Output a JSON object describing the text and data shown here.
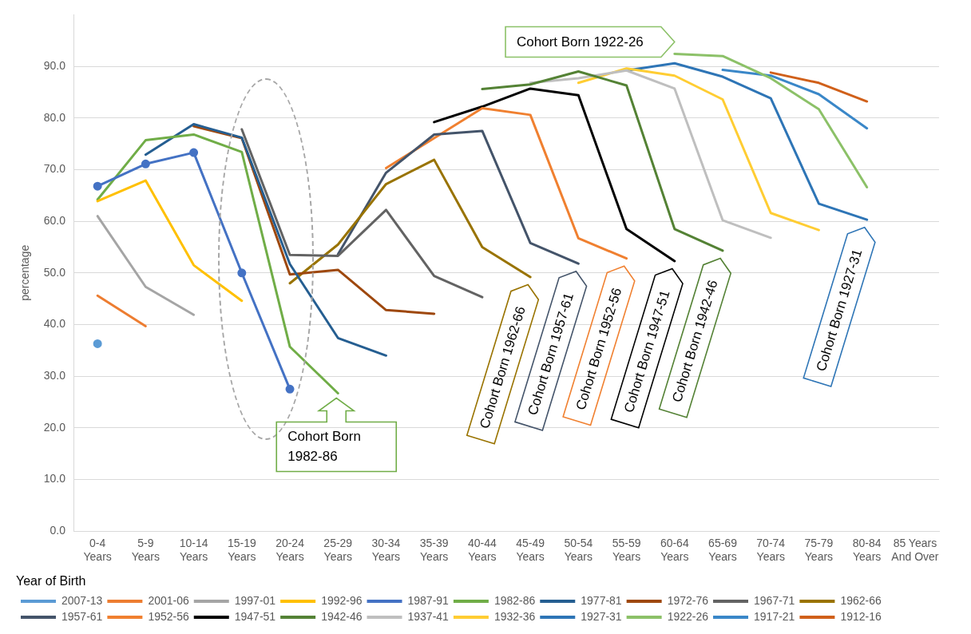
{
  "chart_data": {
    "type": "line",
    "categories": [
      "0-4 Years",
      "5-9 Years",
      "10-14 Years",
      "15-19 Years",
      "20-24 Years",
      "25-29 Years",
      "30-34 Years",
      "35-39 Years",
      "40-44 Years",
      "45-49 Years",
      "50-54 Years",
      "55-59 Years",
      "60-64 Years",
      "65-69 Years",
      "70-74 Years",
      "75-79 Years",
      "80-84 Years",
      "85 Years And Over"
    ],
    "ylabel": "percentage",
    "legend_title": "Year of Birth",
    "legend": "bottom",
    "grid": "y",
    "marker": "none",
    "line_style": "solid",
    "ylim": [
      0,
      100
    ],
    "yticks": [
      {
        "value": 0,
        "label": "0.0"
      },
      {
        "value": 10,
        "label": "10.0"
      },
      {
        "value": 20,
        "label": "20.0"
      },
      {
        "value": 30,
        "label": "30.0"
      },
      {
        "value": 40,
        "label": "40.0"
      },
      {
        "value": 50,
        "label": "50.0"
      },
      {
        "value": 60,
        "label": "60.0"
      },
      {
        "value": 70,
        "label": "70.0"
      },
      {
        "value": 80,
        "label": "80.0"
      },
      {
        "value": 90,
        "label": "90.0"
      }
    ],
    "series": [
      {
        "name": "2007-13",
        "color": "#5b9bd5",
        "marker": "circle",
        "values": [
          36.3,
          null,
          null,
          null,
          null,
          null,
          null,
          null,
          null,
          null,
          null,
          null,
          null,
          null,
          null,
          null,
          null,
          null
        ]
      },
      {
        "name": "2001-06",
        "color": "#ed7d31",
        "values": [
          45.6,
          39.7,
          null,
          null,
          null,
          null,
          null,
          null,
          null,
          null,
          null,
          null,
          null,
          null,
          null,
          null,
          null,
          null
        ]
      },
      {
        "name": "1997-01",
        "color": "#a5a5a5",
        "values": [
          61.0,
          47.3,
          41.9,
          null,
          null,
          null,
          null,
          null,
          null,
          null,
          null,
          null,
          null,
          null,
          null,
          null,
          null,
          null
        ]
      },
      {
        "name": "1992-96",
        "color": "#ffc000",
        "values": [
          63.9,
          67.9,
          51.5,
          44.6,
          null,
          null,
          null,
          null,
          null,
          null,
          null,
          null,
          null,
          null,
          null,
          null,
          null,
          null
        ]
      },
      {
        "name": "1987-91",
        "color": "#4472c4",
        "marker": "circle",
        "values": [
          66.8,
          71.1,
          73.3,
          50.0,
          27.5,
          null,
          null,
          null,
          null,
          null,
          null,
          null,
          null,
          null,
          null,
          null,
          null,
          null
        ]
      },
      {
        "name": "1982-86",
        "color": "#70ad47",
        "values": [
          64.2,
          75.7,
          76.8,
          73.4,
          35.7,
          26.7,
          null,
          null,
          null,
          null,
          null,
          null,
          null,
          null,
          null,
          null,
          null,
          null
        ]
      },
      {
        "name": "1977-81",
        "color": "#255e91",
        "values": [
          null,
          72.9,
          78.8,
          76.2,
          51.7,
          37.4,
          34.0,
          null,
          null,
          null,
          null,
          null,
          null,
          null,
          null,
          null,
          null,
          null
        ]
      },
      {
        "name": "1972-76",
        "color": "#9e480e",
        "values": [
          null,
          null,
          78.4,
          76.1,
          49.7,
          50.6,
          42.8,
          42.1,
          null,
          null,
          null,
          null,
          null,
          null,
          null,
          null,
          null,
          null
        ]
      },
      {
        "name": "1967-71",
        "color": "#636363",
        "values": [
          null,
          null,
          null,
          77.8,
          53.5,
          53.3,
          62.2,
          49.4,
          45.3,
          null,
          null,
          null,
          null,
          null,
          null,
          null,
          null,
          null
        ]
      },
      {
        "name": "1962-66",
        "color": "#997300",
        "values": [
          null,
          null,
          null,
          null,
          48.0,
          55.5,
          67.2,
          71.9,
          55.0,
          49.2,
          null,
          null,
          null,
          null,
          null,
          null,
          null,
          null
        ]
      },
      {
        "name": "1957-61",
        "color": "#44546a",
        "values": [
          null,
          null,
          null,
          null,
          null,
          53.6,
          69.4,
          76.8,
          77.5,
          55.8,
          51.8,
          null,
          null,
          null,
          null,
          null,
          null,
          null
        ]
      },
      {
        "name": "1952-56",
        "color": "#f08030",
        "values": [
          null,
          null,
          null,
          null,
          null,
          null,
          70.3,
          76.1,
          81.9,
          80.6,
          56.7,
          52.8,
          null,
          null,
          null,
          null,
          null,
          null
        ]
      },
      {
        "name": "1947-51",
        "color": "#000000",
        "values": [
          null,
          null,
          null,
          null,
          null,
          null,
          null,
          79.2,
          82.2,
          85.7,
          84.4,
          58.5,
          52.3,
          null,
          null,
          null,
          null,
          null
        ]
      },
      {
        "name": "1942-46",
        "color": "#548235",
        "values": [
          null,
          null,
          null,
          null,
          null,
          null,
          null,
          null,
          85.6,
          86.5,
          89.0,
          86.3,
          58.5,
          54.3,
          null,
          null,
          null,
          null
        ]
      },
      {
        "name": "1937-41",
        "color": "#bfbfbf",
        "values": [
          null,
          null,
          null,
          null,
          null,
          null,
          null,
          null,
          null,
          86.8,
          87.7,
          89.2,
          85.7,
          60.2,
          56.8,
          null,
          null,
          null
        ]
      },
      {
        "name": "1932-36",
        "color": "#ffcd33",
        "values": [
          null,
          null,
          null,
          null,
          null,
          null,
          null,
          null,
          null,
          null,
          86.8,
          89.6,
          88.2,
          83.6,
          61.6,
          58.3,
          null,
          null
        ]
      },
      {
        "name": "1927-31",
        "color": "#2e75b6",
        "values": [
          null,
          null,
          null,
          null,
          null,
          null,
          null,
          null,
          null,
          null,
          null,
          89.2,
          90.6,
          88.0,
          83.8,
          63.4,
          60.3,
          null
        ]
      },
      {
        "name": "1922-26",
        "color": "#8cc168",
        "values": [
          null,
          null,
          null,
          null,
          null,
          null,
          null,
          null,
          null,
          null,
          null,
          null,
          92.4,
          92.0,
          87.7,
          81.7,
          66.6,
          null
        ]
      },
      {
        "name": "1917-21",
        "color": "#3a87c8",
        "values": [
          null,
          null,
          null,
          null,
          null,
          null,
          null,
          null,
          null,
          null,
          null,
          null,
          null,
          89.3,
          88.2,
          84.6,
          78.0,
          null
        ]
      },
      {
        "name": "1912-16",
        "color": "#d0601a",
        "values": [
          null,
          null,
          null,
          null,
          null,
          null,
          null,
          null,
          null,
          null,
          null,
          null,
          null,
          null,
          88.8,
          86.8,
          83.2,
          null
        ]
      }
    ],
    "annotations": [
      {
        "text": "Cohort Born 1922-26",
        "x": "60-64 Years",
        "y": 92.4
      },
      {
        "text": "Cohort Born 1982-86",
        "x": "25-29 Years",
        "y": 26.7
      },
      {
        "text": "Cohort Born 1962-66",
        "x": "45-49 Years",
        "y": 49.2
      },
      {
        "text": "Cohort Born 1957-61",
        "x": "50-54 Years",
        "y": 51.8
      },
      {
        "text": "Cohort Born 1952-56",
        "x": "55-59 Years",
        "y": 52.8
      },
      {
        "text": "Cohort Born 1947-51",
        "x": "60-64 Years",
        "y": 52.3
      },
      {
        "text": "Cohort Born 1942-46",
        "x": "65-69 Years",
        "y": 54.3
      },
      {
        "text": "Cohort Born 1927-31",
        "x": "80-84 Years",
        "y": 60.3
      }
    ]
  }
}
